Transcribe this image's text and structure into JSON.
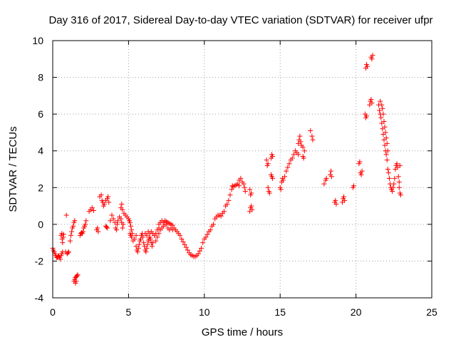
{
  "chart_data": {
    "type": "scatter",
    "title": "Day 316 of 2017, Sidereal Day-to-day VTEC variation (SDTVAR) for receiver ufpr",
    "xlabel": "GPS time / hours",
    "ylabel": "SDTVAR / TECUs",
    "xlim": [
      0,
      25
    ],
    "ylim": [
      -4,
      10
    ],
    "xticks": [
      0,
      5,
      10,
      15,
      20,
      25
    ],
    "yticks": [
      -4,
      -2,
      0,
      2,
      4,
      6,
      8,
      10
    ],
    "grid": true,
    "marker": "plus",
    "color": "#ff0000",
    "series": [
      {
        "name": "SDTVAR",
        "points": [
          [
            0.0,
            -1.3
          ],
          [
            0.05,
            -1.4
          ],
          [
            0.1,
            -1.5
          ],
          [
            0.15,
            -1.6
          ],
          [
            0.2,
            -1.7
          ],
          [
            0.25,
            -1.8
          ],
          [
            0.3,
            -1.8
          ],
          [
            0.35,
            -1.75
          ],
          [
            0.4,
            -1.7
          ],
          [
            0.45,
            -1.8
          ],
          [
            0.5,
            -1.9
          ],
          [
            0.55,
            -1.7
          ],
          [
            0.6,
            -1.6
          ],
          [
            0.65,
            -1.5
          ],
          [
            0.55,
            -0.6
          ],
          [
            0.6,
            -0.5
          ],
          [
            0.62,
            -0.8
          ],
          [
            0.65,
            -1.0
          ],
          [
            0.7,
            -0.7
          ],
          [
            0.72,
            -0.55
          ],
          [
            0.9,
            0.5
          ],
          [
            0.85,
            -1.5
          ],
          [
            0.95,
            -1.6
          ],
          [
            1.0,
            -1.55
          ],
          [
            1.05,
            -1.5
          ],
          [
            1.15,
            -0.9
          ],
          [
            1.2,
            -0.6
          ],
          [
            1.25,
            -0.4
          ],
          [
            1.3,
            -0.2
          ],
          [
            1.35,
            -0.1
          ],
          [
            1.4,
            0.1
          ],
          [
            1.45,
            0.2
          ],
          [
            1.4,
            -3.1
          ],
          [
            1.45,
            -3.0
          ],
          [
            1.5,
            -2.9
          ],
          [
            1.55,
            -2.85
          ],
          [
            1.6,
            -2.8
          ],
          [
            1.65,
            -2.75
          ],
          [
            1.5,
            -3.2
          ],
          [
            1.55,
            -3.1
          ],
          [
            1.8,
            -0.6
          ],
          [
            1.85,
            -0.5
          ],
          [
            1.9,
            -0.45
          ],
          [
            1.95,
            -0.5
          ],
          [
            2.0,
            -0.4
          ],
          [
            2.05,
            -0.2
          ],
          [
            2.1,
            -0.1
          ],
          [
            2.15,
            0.0
          ],
          [
            2.2,
            0.2
          ],
          [
            2.4,
            0.7
          ],
          [
            2.5,
            0.8
          ],
          [
            2.6,
            0.9
          ],
          [
            2.7,
            0.75
          ],
          [
            2.9,
            -0.3
          ],
          [
            3.0,
            -0.4
          ],
          [
            2.95,
            -0.2
          ],
          [
            3.1,
            1.5
          ],
          [
            3.2,
            1.6
          ],
          [
            3.25,
            1.3
          ],
          [
            3.3,
            1.2
          ],
          [
            3.35,
            1.0
          ],
          [
            3.4,
            1.1
          ],
          [
            3.5,
            1.3
          ],
          [
            3.6,
            1.4
          ],
          [
            3.65,
            1.5
          ],
          [
            3.7,
            1.2
          ],
          [
            3.5,
            -0.1
          ],
          [
            3.55,
            -0.15
          ],
          [
            3.6,
            -0.2
          ],
          [
            3.8,
            0.2
          ],
          [
            3.9,
            0.5
          ],
          [
            4.0,
            0.3
          ],
          [
            4.1,
            0.1
          ],
          [
            4.15,
            -0.2
          ],
          [
            4.2,
            -0.3
          ],
          [
            4.25,
            0.0
          ],
          [
            4.3,
            0.2
          ],
          [
            4.4,
            0.4
          ],
          [
            4.5,
            0.3
          ],
          [
            4.55,
            0.1
          ],
          [
            4.6,
            -0.2
          ],
          [
            4.65,
            0.0
          ],
          [
            4.5,
            0.9
          ],
          [
            4.55,
            1.1
          ],
          [
            4.6,
            0.8
          ],
          [
            4.7,
            0.6
          ],
          [
            4.8,
            0.5
          ],
          [
            4.9,
            0.4
          ],
          [
            5.0,
            0.3
          ],
          [
            5.05,
            0.2
          ],
          [
            5.1,
            0.1
          ],
          [
            5.15,
            -0.1
          ],
          [
            5.2,
            -0.3
          ],
          [
            5.25,
            -0.5
          ],
          [
            5.1,
            -0.5
          ],
          [
            5.15,
            -0.6
          ],
          [
            5.2,
            -0.7
          ],
          [
            5.3,
            -0.9
          ],
          [
            5.4,
            -0.8
          ],
          [
            5.5,
            -0.6
          ],
          [
            5.5,
            -1.2
          ],
          [
            5.55,
            -1.4
          ],
          [
            5.6,
            -1.5
          ],
          [
            5.65,
            -1.3
          ],
          [
            5.7,
            -1.1
          ],
          [
            5.75,
            -0.9
          ],
          [
            5.8,
            -0.8
          ],
          [
            5.85,
            -0.6
          ],
          [
            5.9,
            -0.5
          ],
          [
            5.95,
            -0.7
          ],
          [
            6.0,
            -1.0
          ],
          [
            6.05,
            -1.2
          ],
          [
            6.1,
            -1.4
          ],
          [
            6.15,
            -1.5
          ],
          [
            6.2,
            -1.3
          ],
          [
            6.25,
            -1.1
          ],
          [
            6.3,
            -0.9
          ],
          [
            6.35,
            -0.8
          ],
          [
            6.4,
            -0.7
          ],
          [
            6.45,
            -0.8
          ],
          [
            6.5,
            -1.0
          ],
          [
            6.55,
            -1.2
          ],
          [
            6.6,
            -1.0
          ],
          [
            6.1,
            -0.5
          ],
          [
            6.2,
            -0.6
          ],
          [
            6.3,
            -0.4
          ],
          [
            6.4,
            -0.5
          ],
          [
            6.5,
            -0.4
          ],
          [
            6.6,
            -0.5
          ],
          [
            6.7,
            -0.6
          ],
          [
            6.8,
            -0.5
          ],
          [
            6.9,
            -0.3
          ],
          [
            7.0,
            -0.2
          ],
          [
            6.8,
            -0.9
          ],
          [
            6.9,
            -0.7
          ],
          [
            7.0,
            -0.5
          ],
          [
            7.1,
            -0.3
          ],
          [
            7.2,
            -0.2
          ],
          [
            7.3,
            -0.1
          ],
          [
            7.4,
            0.0
          ],
          [
            7.5,
            0.0
          ],
          [
            7.0,
            0.0
          ],
          [
            7.1,
            0.1
          ],
          [
            7.2,
            0.2
          ],
          [
            7.3,
            0.1
          ],
          [
            7.4,
            0.2
          ],
          [
            7.5,
            0.15
          ],
          [
            7.6,
            0.1
          ],
          [
            7.7,
            0.05
          ],
          [
            7.8,
            0.0
          ],
          [
            7.9,
            -0.05
          ],
          [
            7.6,
            -0.2
          ],
          [
            7.7,
            -0.3
          ],
          [
            7.8,
            -0.2
          ],
          [
            7.9,
            -0.3
          ],
          [
            8.0,
            -0.2
          ],
          [
            8.1,
            -0.3
          ],
          [
            8.2,
            -0.4
          ],
          [
            8.3,
            -0.5
          ],
          [
            8.4,
            -0.6
          ],
          [
            8.5,
            -0.8
          ],
          [
            8.6,
            -0.95
          ],
          [
            8.7,
            -1.1
          ],
          [
            8.8,
            -1.25
          ],
          [
            8.9,
            -1.4
          ],
          [
            9.0,
            -1.55
          ],
          [
            9.1,
            -1.65
          ],
          [
            9.2,
            -1.7
          ],
          [
            9.3,
            -1.75
          ],
          [
            9.4,
            -1.75
          ],
          [
            9.5,
            -1.7
          ],
          [
            9.6,
            -1.6
          ],
          [
            9.7,
            -1.45
          ],
          [
            9.8,
            -1.3
          ],
          [
            9.9,
            -1.0
          ],
          [
            10.0,
            -0.8
          ],
          [
            10.1,
            -0.7
          ],
          [
            10.2,
            -0.55
          ],
          [
            10.3,
            -0.4
          ],
          [
            10.4,
            -0.3
          ],
          [
            10.5,
            -0.1
          ],
          [
            10.6,
            0.0
          ],
          [
            10.7,
            0.3
          ],
          [
            10.8,
            0.4
          ],
          [
            10.9,
            0.5
          ],
          [
            11.0,
            0.5
          ],
          [
            11.1,
            0.45
          ],
          [
            11.2,
            0.6
          ],
          [
            11.3,
            0.7
          ],
          [
            11.4,
            1.0
          ],
          [
            11.5,
            1.1
          ],
          [
            11.6,
            1.3
          ],
          [
            11.7,
            1.6
          ],
          [
            11.8,
            1.9
          ],
          [
            11.85,
            2.1
          ],
          [
            11.9,
            2.05
          ],
          [
            12.0,
            2.1
          ],
          [
            12.1,
            2.15
          ],
          [
            12.2,
            2.2
          ],
          [
            12.3,
            2.1
          ],
          [
            12.3,
            2.4
          ],
          [
            12.4,
            2.5
          ],
          [
            12.5,
            2.3
          ],
          [
            12.6,
            2.2
          ],
          [
            12.65,
            2.0
          ],
          [
            12.7,
            1.8
          ],
          [
            13.0,
            1.9
          ],
          [
            13.1,
            1.7
          ],
          [
            13.05,
            1.6
          ],
          [
            13.0,
            0.7
          ],
          [
            13.05,
            0.9
          ],
          [
            13.1,
            1.0
          ],
          [
            13.15,
            0.8
          ],
          [
            14.1,
            3.5
          ],
          [
            14.2,
            3.3
          ],
          [
            14.15,
            3.2
          ],
          [
            14.2,
            2.0
          ],
          [
            14.25,
            1.8
          ],
          [
            14.3,
            1.7
          ],
          [
            14.4,
            2.7
          ],
          [
            14.45,
            2.6
          ],
          [
            14.5,
            2.5
          ],
          [
            14.4,
            3.6
          ],
          [
            14.45,
            3.8
          ],
          [
            14.5,
            3.7
          ],
          [
            15.0,
            2.0
          ],
          [
            15.05,
            1.9
          ],
          [
            15.1,
            2.3
          ],
          [
            15.15,
            2.5
          ],
          [
            15.2,
            2.4
          ],
          [
            15.3,
            2.6
          ],
          [
            15.4,
            2.9
          ],
          [
            15.5,
            3.1
          ],
          [
            15.6,
            3.3
          ],
          [
            15.7,
            3.5
          ],
          [
            15.8,
            3.6
          ],
          [
            15.9,
            3.8
          ],
          [
            16.0,
            4.0
          ],
          [
            16.1,
            3.9
          ],
          [
            16.2,
            3.8
          ],
          [
            16.2,
            4.4
          ],
          [
            16.25,
            4.6
          ],
          [
            16.3,
            4.8
          ],
          [
            16.35,
            4.5
          ],
          [
            16.4,
            4.3
          ],
          [
            16.5,
            4.2
          ],
          [
            16.6,
            4.0
          ],
          [
            16.5,
            3.7
          ],
          [
            16.55,
            3.6
          ],
          [
            17.0,
            5.1
          ],
          [
            17.1,
            4.8
          ],
          [
            17.15,
            4.6
          ],
          [
            17.9,
            2.2
          ],
          [
            18.0,
            2.4
          ],
          [
            18.05,
            2.5
          ],
          [
            18.3,
            2.7
          ],
          [
            18.35,
            2.9
          ],
          [
            18.4,
            2.6
          ],
          [
            18.6,
            1.2
          ],
          [
            18.65,
            1.3
          ],
          [
            18.7,
            1.1
          ],
          [
            19.1,
            1.2
          ],
          [
            19.15,
            1.4
          ],
          [
            19.2,
            1.5
          ],
          [
            19.25,
            1.3
          ],
          [
            19.8,
            2.0
          ],
          [
            19.85,
            2.1
          ],
          [
            20.2,
            3.3
          ],
          [
            20.25,
            3.4
          ],
          [
            20.3,
            2.8
          ],
          [
            20.35,
            2.7
          ],
          [
            20.4,
            2.9
          ],
          [
            20.6,
            6.0
          ],
          [
            20.65,
            5.8
          ],
          [
            20.7,
            5.9
          ],
          [
            20.65,
            8.5
          ],
          [
            20.7,
            8.7
          ],
          [
            20.75,
            8.6
          ],
          [
            20.9,
            6.5
          ],
          [
            20.95,
            6.7
          ],
          [
            21.0,
            6.8
          ],
          [
            21.05,
            6.6
          ],
          [
            21.0,
            9.1
          ],
          [
            21.05,
            9.0
          ],
          [
            21.1,
            9.2
          ],
          [
            21.5,
            6.5
          ],
          [
            21.55,
            6.2
          ],
          [
            21.6,
            6.0
          ],
          [
            21.65,
            5.8
          ],
          [
            21.7,
            5.5
          ],
          [
            21.75,
            5.2
          ],
          [
            21.8,
            4.9
          ],
          [
            21.85,
            4.6
          ],
          [
            21.9,
            4.3
          ],
          [
            21.95,
            4.0
          ],
          [
            22.0,
            3.8
          ],
          [
            22.05,
            3.5
          ],
          [
            21.6,
            6.7
          ],
          [
            21.7,
            6.5
          ],
          [
            21.75,
            6.3
          ],
          [
            21.8,
            6.0
          ],
          [
            21.85,
            5.6
          ],
          [
            21.9,
            5.3
          ],
          [
            21.95,
            5.0
          ],
          [
            22.0,
            4.7
          ],
          [
            22.05,
            4.4
          ],
          [
            22.1,
            4.0
          ],
          [
            22.1,
            3.0
          ],
          [
            22.15,
            2.8
          ],
          [
            22.2,
            2.5
          ],
          [
            22.25,
            2.2
          ],
          [
            22.3,
            2.0
          ],
          [
            22.35,
            1.9
          ],
          [
            22.4,
            1.8
          ],
          [
            22.45,
            2.0
          ],
          [
            22.5,
            2.2
          ],
          [
            22.55,
            2.5
          ],
          [
            22.6,
            3.0
          ],
          [
            22.65,
            3.2
          ],
          [
            22.7,
            3.3
          ],
          [
            22.75,
            3.1
          ],
          [
            22.8,
            2.6
          ],
          [
            22.85,
            2.0
          ],
          [
            22.9,
            1.7
          ],
          [
            22.95,
            1.6
          ],
          [
            22.85,
            2.3
          ],
          [
            22.9,
            3.2
          ]
        ]
      }
    ]
  }
}
